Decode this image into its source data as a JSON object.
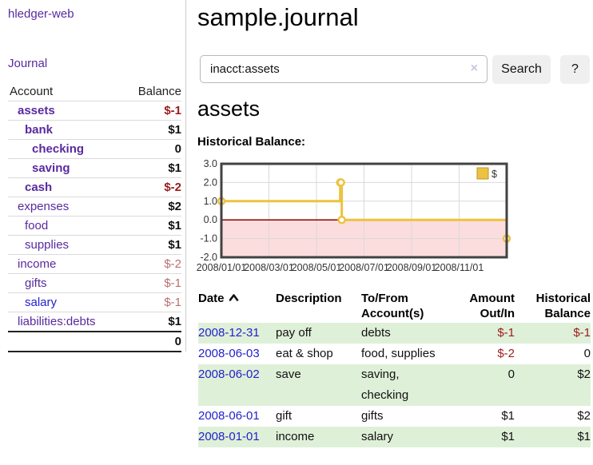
{
  "app": {
    "brand": "hledger-web"
  },
  "colors": {
    "accent_purple": "#582a9f",
    "link_blue": "#2222cc",
    "negative_strong": "#9c1b1b",
    "negative_soft": "#b96f6f",
    "row_green": "#dff0d8",
    "series_gold": "#edc240",
    "negative_region_pink": "#fcdddd",
    "zero_line_red": "#8b0000"
  },
  "sidebar": {
    "journal_link": "Journal",
    "table": {
      "account_header": "Account",
      "balance_header": "Balance",
      "rows": [
        {
          "account": "assets",
          "balance": "$-1"
        },
        {
          "account": "bank",
          "balance": "$1"
        },
        {
          "account": "checking",
          "balance": "0"
        },
        {
          "account": "saving",
          "balance": "$1"
        },
        {
          "account": "cash",
          "balance": "$-2"
        },
        {
          "account": "expenses",
          "balance": "$2"
        },
        {
          "account": "food",
          "balance": "$1"
        },
        {
          "account": "supplies",
          "balance": "$1"
        },
        {
          "account": "income",
          "balance": "$-2"
        },
        {
          "account": "gifts",
          "balance": "$-1"
        },
        {
          "account": "salary",
          "balance": "$-1"
        },
        {
          "account": "liabilities:debts",
          "balance": "$1"
        }
      ],
      "total": "0"
    }
  },
  "main": {
    "title": "sample.journal",
    "search": {
      "value": "inacct:assets",
      "clear_icon": "×",
      "button": "Search",
      "help_button": "?"
    },
    "account_heading": "assets",
    "chart_heading": "Historical Balance:",
    "register": {
      "headers": {
        "date": "Date",
        "description": "Description",
        "tofrom": "To/From Account(s)",
        "amount": "Amount Out/In",
        "balance": "Historical Balance"
      },
      "rows": [
        {
          "date": "2008-12-31",
          "description": "pay off",
          "tofrom": "debts",
          "amount": "$-1",
          "balance": "$-1"
        },
        {
          "date": "2008-06-03",
          "description": "eat & shop",
          "tofrom": "food, supplies",
          "amount": "$-2",
          "balance": "0"
        },
        {
          "date": "2008-06-02",
          "description": "save",
          "tofrom": "saving, checking",
          "amount": "0",
          "balance": "$2"
        },
        {
          "date": "2008-06-01",
          "description": "gift",
          "tofrom": "gifts",
          "amount": "$1",
          "balance": "$2"
        },
        {
          "date": "2008-01-01",
          "description": "income",
          "tofrom": "salary",
          "amount": "$1",
          "balance": "$1"
        }
      ]
    }
  },
  "chart_data": {
    "type": "line",
    "title": "Historical Balance:",
    "step": true,
    "series": [
      {
        "name": "$",
        "color": "#edc240",
        "points": [
          [
            "2008-01-01",
            1
          ],
          [
            "2008-06-01",
            2
          ],
          [
            "2008-06-02",
            2
          ],
          [
            "2008-06-03",
            0
          ],
          [
            "2008-12-31",
            -1
          ]
        ]
      }
    ],
    "x_range": [
      "2008-01-01",
      "2008-12-31"
    ],
    "xticks": [
      "2008/01/01",
      "2008/03/01",
      "2008/05/01",
      "2008/07/01",
      "2008/09/01",
      "2008/11/01"
    ],
    "yticks": [
      "3.0",
      "2.0",
      "1.0",
      "0.0",
      "-1.0",
      "-2.0"
    ],
    "ylim": [
      -2,
      3
    ],
    "grid": true,
    "legend": {
      "label": "$",
      "position": "top-right"
    }
  }
}
